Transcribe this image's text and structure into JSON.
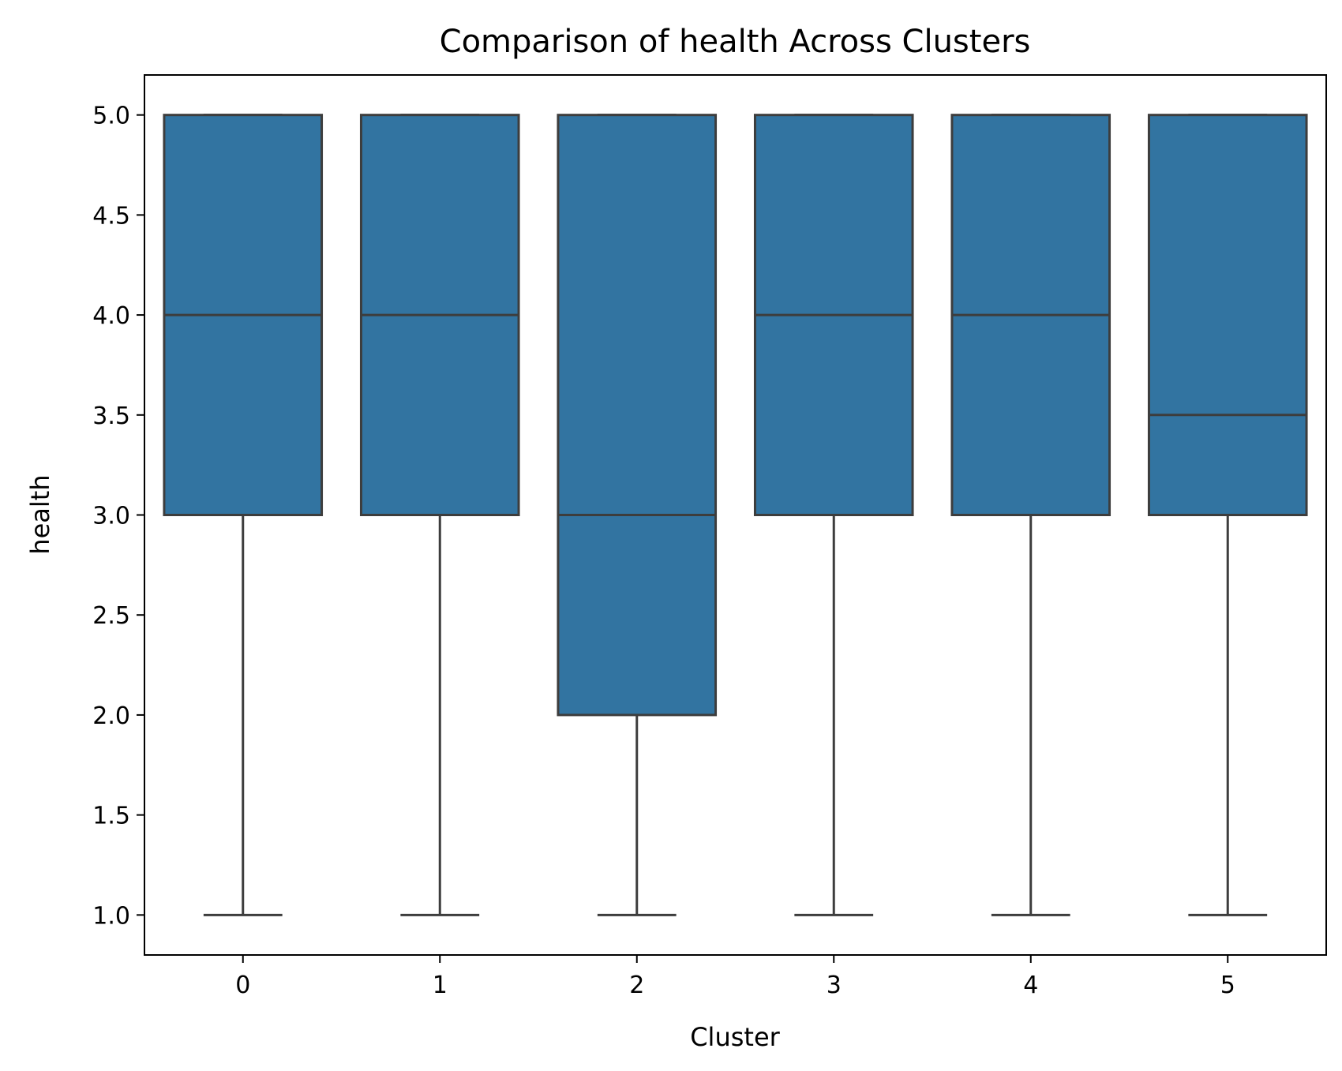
{
  "chart_data": {
    "type": "box",
    "title": "Comparison of health Across Clusters",
    "xlabel": "Cluster",
    "ylabel": "health",
    "categories": [
      "0",
      "1",
      "2",
      "3",
      "4",
      "5"
    ],
    "boxes": [
      {
        "category": "0",
        "whisker_low": 1.0,
        "q1": 3.0,
        "median": 4.0,
        "q3": 5.0,
        "whisker_high": 5.0
      },
      {
        "category": "1",
        "whisker_low": 1.0,
        "q1": 3.0,
        "median": 4.0,
        "q3": 5.0,
        "whisker_high": 5.0
      },
      {
        "category": "2",
        "whisker_low": 1.0,
        "q1": 2.0,
        "median": 3.0,
        "q3": 5.0,
        "whisker_high": 5.0
      },
      {
        "category": "3",
        "whisker_low": 1.0,
        "q1": 3.0,
        "median": 4.0,
        "q3": 5.0,
        "whisker_high": 5.0
      },
      {
        "category": "4",
        "whisker_low": 1.0,
        "q1": 3.0,
        "median": 4.0,
        "q3": 5.0,
        "whisker_high": 5.0
      },
      {
        "category": "5",
        "whisker_low": 1.0,
        "q1": 3.0,
        "median": 3.5,
        "q3": 5.0,
        "whisker_high": 5.0
      }
    ],
    "ylim": [
      0.8,
      5.2
    ],
    "yticks": [
      "1.0",
      "1.5",
      "2.0",
      "2.5",
      "3.0",
      "3.5",
      "4.0",
      "4.5",
      "5.0"
    ],
    "grid": false,
    "colors": {
      "box_fill": "#3274a1",
      "line": "#3d3d3d",
      "axes": "#000000",
      "background": "#ffffff"
    }
  }
}
